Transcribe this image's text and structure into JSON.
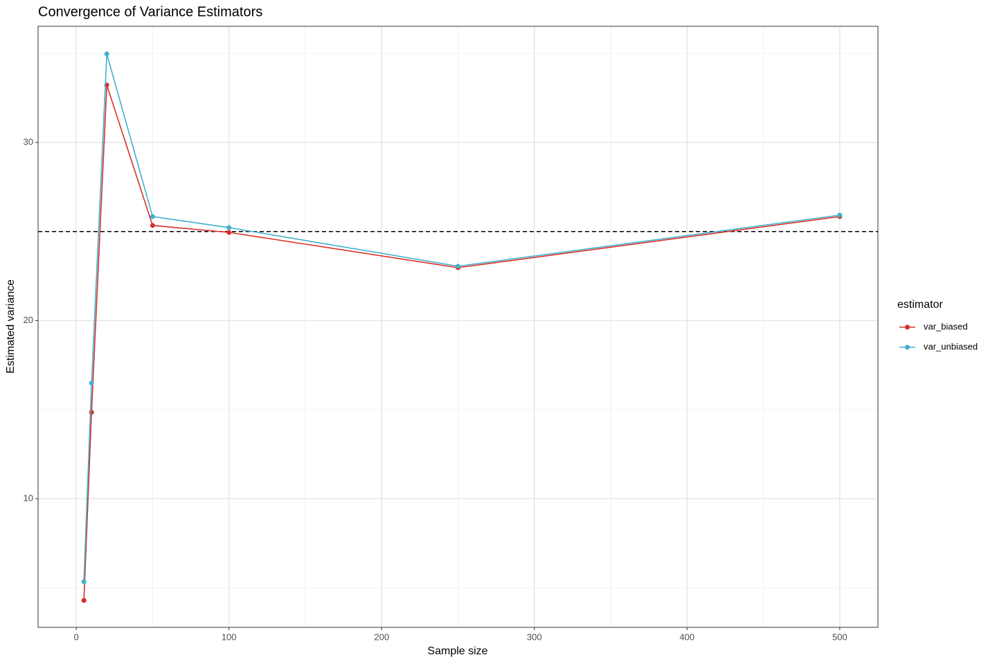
{
  "chart_data": {
    "type": "line",
    "title": "Convergence of Variance Estimators",
    "x_label": "Sample size",
    "y_label": "Estimated variance",
    "x": [
      5,
      10,
      20,
      50,
      100,
      250,
      500
    ],
    "series": [
      {
        "name": "var_biased",
        "color": "#d73027",
        "values": [
          4.29,
          14.85,
          33.22,
          25.34,
          24.95,
          22.97,
          25.84
        ]
      },
      {
        "name": "var_unbiased",
        "color": "#41b0cf",
        "values": [
          5.34,
          16.49,
          34.97,
          25.84,
          25.22,
          23.05,
          25.92
        ]
      }
    ],
    "hline": 25,
    "xlim": [
      -25,
      525
    ],
    "ylim": [
      2.78,
      36.52
    ],
    "xticks": [
      0,
      100,
      200,
      300,
      400,
      500
    ],
    "yticks": [
      10,
      20,
      30
    ],
    "xgrid_minor": [
      50,
      150,
      250,
      350,
      450
    ],
    "ygrid_minor": [
      5,
      15,
      25,
      35
    ],
    "grid": true,
    "legend_title": "estimator",
    "legend": "right"
  }
}
